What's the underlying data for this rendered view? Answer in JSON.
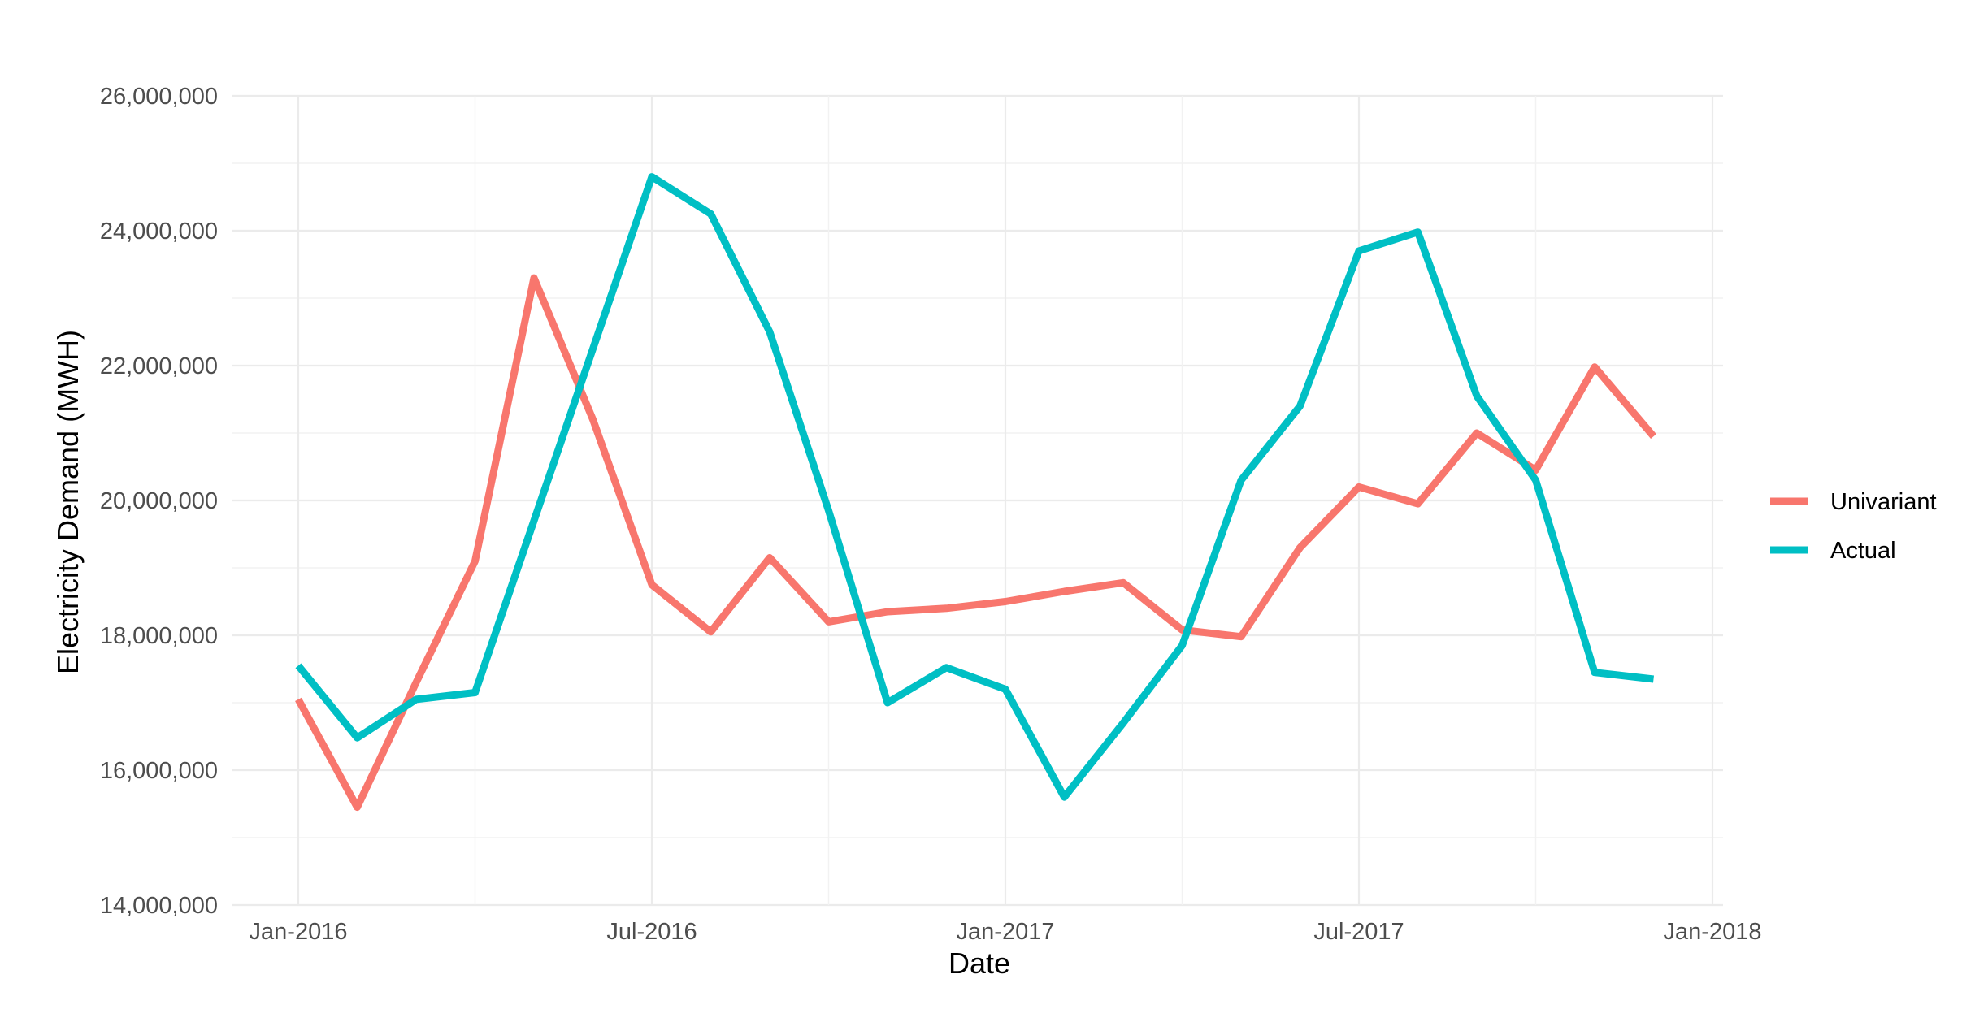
{
  "chart_data": {
    "type": "line",
    "xlabel": "Date",
    "ylabel": "Electricity Demand (MWH)",
    "x_ticks": [
      "Jan-2016",
      "Jul-2016",
      "Jan-2017",
      "Jul-2017",
      "Jan-2018"
    ],
    "x_range": [
      "2016-01",
      "2018-01"
    ],
    "y_ticks": [
      "14,000,000",
      "16,000,000",
      "18,000,000",
      "20,000,000",
      "22,000,000",
      "24,000,000",
      "26,000,000"
    ],
    "ylim": [
      14000000,
      26000000
    ],
    "grid": true,
    "legend_position": "right",
    "x": [
      "2016-01",
      "2016-02",
      "2016-03",
      "2016-04",
      "2016-05",
      "2016-06",
      "2016-07",
      "2016-08",
      "2016-09",
      "2016-10",
      "2016-11",
      "2016-12",
      "2017-01",
      "2017-02",
      "2017-03",
      "2017-04",
      "2017-05",
      "2017-06",
      "2017-07",
      "2017-08",
      "2017-09",
      "2017-10",
      "2017-11",
      "2017-12"
    ],
    "series": [
      {
        "name": "Univariant",
        "color": "#F8766D",
        "values": [
          17050000,
          15450000,
          17300000,
          19100000,
          23300000,
          21200000,
          18750000,
          18050000,
          19150000,
          18200000,
          18350000,
          18400000,
          18500000,
          18650000,
          18780000,
          18080000,
          17980000,
          19300000,
          20200000,
          19950000,
          21000000,
          20450000,
          21980000,
          20950000
        ]
      },
      {
        "name": "Actual",
        "color": "#00BFC4",
        "values": [
          17550000,
          16480000,
          17050000,
          17150000,
          19700000,
          22250000,
          24800000,
          24250000,
          22500000,
          19850000,
          17000000,
          17520000,
          17200000,
          15600000,
          16700000,
          17850000,
          20300000,
          21400000,
          23700000,
          23980000,
          21550000,
          20300000,
          17450000,
          17350000
        ]
      }
    ]
  }
}
